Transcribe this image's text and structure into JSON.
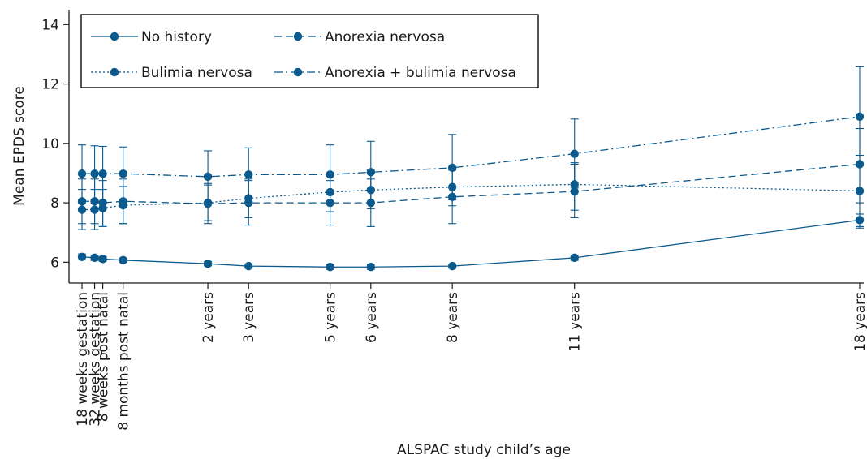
{
  "colors": {
    "series": "#0b5a8e",
    "axis": "#1a1a1a",
    "background": "#ffffff"
  },
  "chart_data": {
    "type": "line",
    "title": "",
    "xlabel": "ALSPAC study child’s age",
    "ylabel": "Mean EPDS score",
    "ylim": [
      5.3,
      14.5
    ],
    "yticks": [
      6,
      8,
      10,
      12,
      14
    ],
    "grid": false,
    "legend_position": "top-left",
    "x_ticks": [
      {
        "label": "18 weeks gestation",
        "x": -0.09
      },
      {
        "label": "32 weeks gestation",
        "x": 0.22
      },
      {
        "label": "8 weeks post natal",
        "x": 0.42
      },
      {
        "label": "8 months post natal",
        "x": 0.92
      },
      {
        "label": "2 years",
        "x": 3
      },
      {
        "label": "3 years",
        "x": 4
      },
      {
        "label": "5 years",
        "x": 6
      },
      {
        "label": "6 years",
        "x": 7
      },
      {
        "label": "8 years",
        "x": 9
      },
      {
        "label": "11 years",
        "x": 12
      },
      {
        "label": "18 years",
        "x": 19
      }
    ],
    "series": [
      {
        "name": "No history",
        "dash": "solid",
        "values": [
          6.18,
          6.15,
          6.11,
          6.07,
          5.95,
          5.87,
          5.84,
          5.84,
          5.87,
          6.15,
          7.42
        ],
        "lower": [
          6.08,
          6.06,
          6.03,
          6.0,
          5.88,
          5.8,
          5.76,
          5.76,
          5.8,
          6.06,
          7.2
        ],
        "upper": [
          6.28,
          6.24,
          6.19,
          6.14,
          6.02,
          5.94,
          5.92,
          5.92,
          5.94,
          6.24,
          7.62
        ]
      },
      {
        "name": "Anorexia nervosa",
        "dash": "dashed",
        "values": [
          8.05,
          8.05,
          8.0,
          8.05,
          7.97,
          8.0,
          8.0,
          8.0,
          8.2,
          8.38,
          9.3
        ],
        "lower": [
          7.3,
          7.3,
          7.25,
          7.3,
          7.3,
          7.25,
          7.25,
          7.2,
          7.3,
          7.5,
          8.0
        ],
        "upper": [
          8.8,
          8.8,
          8.75,
          8.8,
          8.65,
          8.75,
          8.75,
          8.8,
          9.1,
          9.3,
          10.5
        ]
      },
      {
        "name": "Bulimia nervosa",
        "dash": "dotted",
        "values": [
          7.77,
          7.77,
          7.82,
          7.92,
          8.0,
          8.15,
          8.36,
          8.43,
          8.53,
          8.62,
          8.4
        ],
        "lower": [
          7.1,
          7.1,
          7.2,
          7.3,
          7.4,
          7.5,
          7.7,
          7.8,
          7.9,
          7.75,
          7.15
        ],
        "upper": [
          8.45,
          8.45,
          8.45,
          8.55,
          8.6,
          8.8,
          9.0,
          9.1,
          9.2,
          9.35,
          9.6
        ]
      },
      {
        "name": "Anorexia + bulimia nervosa",
        "dash": "dashdot",
        "values": [
          8.98,
          8.98,
          8.98,
          8.98,
          8.88,
          8.95,
          8.95,
          9.03,
          9.18,
          9.65,
          10.9
        ],
        "lower": [
          8.0,
          8.0,
          8.05,
          8.05,
          8.0,
          8.05,
          7.95,
          8.0,
          8.1,
          8.5,
          9.25
        ],
        "upper": [
          9.95,
          9.92,
          9.9,
          9.88,
          9.75,
          9.85,
          9.95,
          10.07,
          10.3,
          10.82,
          12.58
        ]
      }
    ]
  }
}
